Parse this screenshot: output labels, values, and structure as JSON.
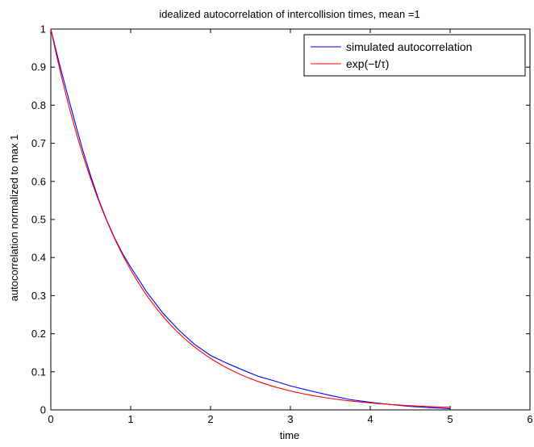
{
  "chart_data": {
    "type": "line",
    "title": "idealized autocorrelation of intercollision times, mean =1",
    "xlabel": "time",
    "ylabel": "autocorrelation normalized to max 1",
    "xlim": [
      0,
      6
    ],
    "ylim": [
      0,
      1
    ],
    "xticks": [
      0,
      1,
      2,
      3,
      4,
      5,
      6
    ],
    "yticks": [
      0,
      0.1,
      0.2,
      0.3,
      0.4,
      0.5,
      0.6,
      0.7,
      0.8,
      0.9,
      1
    ],
    "grid": false,
    "legend_position": "top-right",
    "series": [
      {
        "name": "simulated autocorrelation",
        "color": "#0000ff",
        "x": [
          0,
          0.1,
          0.2,
          0.3,
          0.4,
          0.5,
          0.6,
          0.7,
          0.8,
          0.9,
          1.0,
          1.2,
          1.4,
          1.6,
          1.8,
          2.0,
          2.2,
          2.4,
          2.6,
          2.8,
          3.0,
          3.25,
          3.5,
          3.75,
          4.0,
          4.25,
          4.5,
          4.75,
          5.0
        ],
        "y": [
          1.0,
          0.915,
          0.835,
          0.757,
          0.682,
          0.614,
          0.552,
          0.498,
          0.451,
          0.41,
          0.375,
          0.31,
          0.255,
          0.21,
          0.172,
          0.143,
          0.123,
          0.105,
          0.088,
          0.076,
          0.063,
          0.05,
          0.038,
          0.027,
          0.02,
          0.014,
          0.009,
          0.006,
          0.003
        ]
      },
      {
        "name": "exp(−t/τ)",
        "color": "#ff0000",
        "fn": "exp",
        "x_start": 0,
        "x_end": 5,
        "tau": 1
      }
    ]
  }
}
